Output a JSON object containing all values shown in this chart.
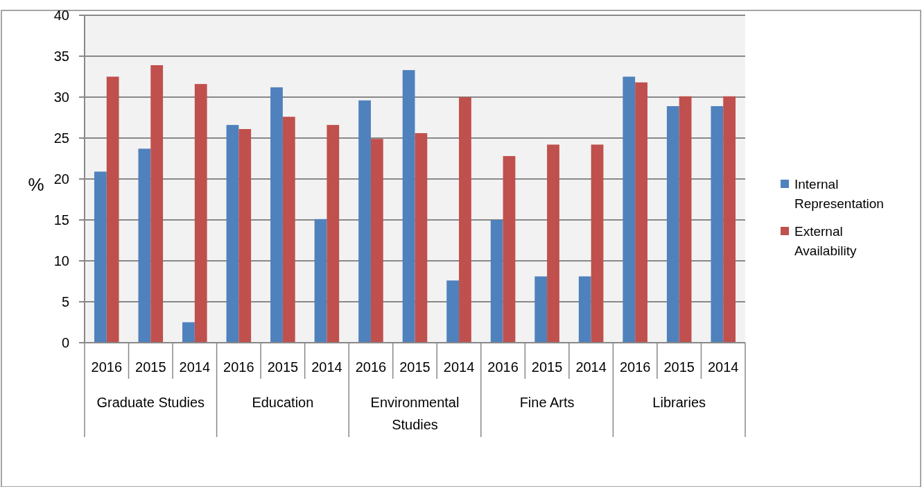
{
  "chart_data": {
    "type": "bar",
    "ylabel": "%",
    "categories": [
      "2016",
      "2015",
      "2014",
      "2016",
      "2015",
      "2014",
      "2016",
      "2015",
      "2014",
      "2016",
      "2015",
      "2014",
      "2016",
      "2015",
      "2014"
    ],
    "series": [
      {
        "name": "Internal Representation",
        "color": "#4f81bd",
        "values": [
          20.9,
          23.7,
          2.5,
          26.6,
          31.2,
          15.1,
          29.6,
          33.3,
          7.6,
          15.0,
          8.1,
          8.1,
          32.5,
          28.9,
          28.9
        ]
      },
      {
        "name": "External Availability",
        "color": "#c0504d",
        "values": [
          32.5,
          33.9,
          31.6,
          26.1,
          27.6,
          26.6,
          24.9,
          25.6,
          30.0,
          22.8,
          24.2,
          24.2,
          31.8,
          30.1,
          30.1
        ]
      }
    ],
    "annotations": [
      "Graduate Studies",
      "Education",
      "Environmental Studies",
      "Fine Arts",
      "Libraries"
    ],
    "ylim": [
      0,
      40
    ],
    "yticks": [
      0,
      5,
      10,
      15,
      20,
      25,
      30,
      35,
      40
    ],
    "grid": "y",
    "legend": "right"
  }
}
